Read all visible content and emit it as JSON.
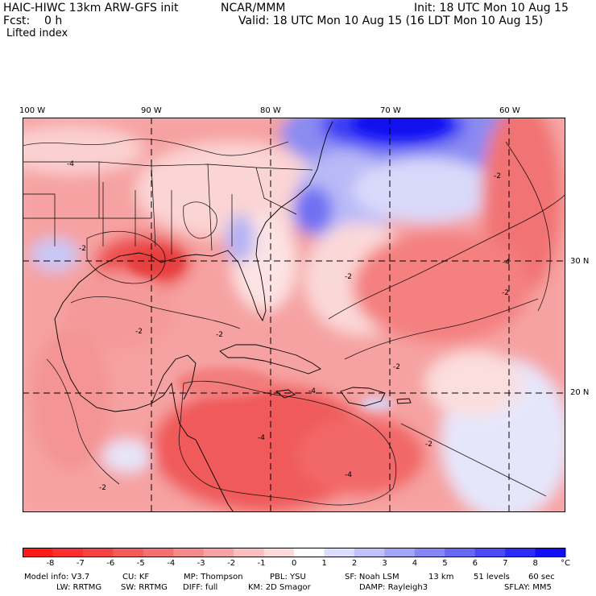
{
  "header": {
    "model": "HAIC-HIWC 13km ARW-GFS init",
    "org": "NCAR/MMM",
    "init": "Init: 18 UTC Mon 10 Aug 15",
    "fcst": "Fcst:    0 h",
    "valid": "Valid: 18 UTC Mon 10 Aug 15 (16 LDT Mon 10 Aug 15)",
    "field": "Lifted index"
  },
  "map": {
    "lon_labels": [
      "100 W",
      "90 W",
      "80 W",
      "70 W",
      "60 W"
    ],
    "lat_labels": [
      "30 N",
      "20 N"
    ],
    "contour_labels": [
      "-2",
      "-4"
    ]
  },
  "colorbar": {
    "ticks": [
      "-8",
      "-7",
      "-6",
      "-5",
      "-4",
      "-3",
      "-2",
      "-1",
      "0",
      "1",
      "2",
      "3",
      "4",
      "5",
      "6",
      "7",
      "8"
    ],
    "unit": "°C",
    "colors": [
      "#ff1a1a",
      "#ff2e2e",
      "#f74343",
      "#f45a5a",
      "#f37171",
      "#f58a8a",
      "#f7a3a3",
      "#fabebe",
      "#fddada",
      "#ffffff",
      "#dcdcff",
      "#c0c0fa",
      "#a3a3f7",
      "#8686f5",
      "#6868f4",
      "#4a4af7",
      "#2c2cfa",
      "#0f0ff7"
    ]
  },
  "footer": {
    "line1": [
      {
        "k": "Model info: V3.7"
      },
      {
        "k": "CU: KF"
      },
      {
        "k": "MP: Thompson"
      },
      {
        "k": "PBL: YSU"
      },
      {
        "k": "SF: Noah LSM"
      },
      {
        "k": "13 km"
      },
      {
        "k": "51 levels"
      },
      {
        "k": "60 sec"
      }
    ],
    "line2": [
      {
        "k": "LW: RRTMG"
      },
      {
        "k": "SW: RRTMG"
      },
      {
        "k": "DIFF: full"
      },
      {
        "k": "KM: 2D Smagor"
      },
      {
        "k": "DAMP: Rayleigh3"
      },
      {
        "k": "SFLAY: MM5"
      }
    ]
  }
}
